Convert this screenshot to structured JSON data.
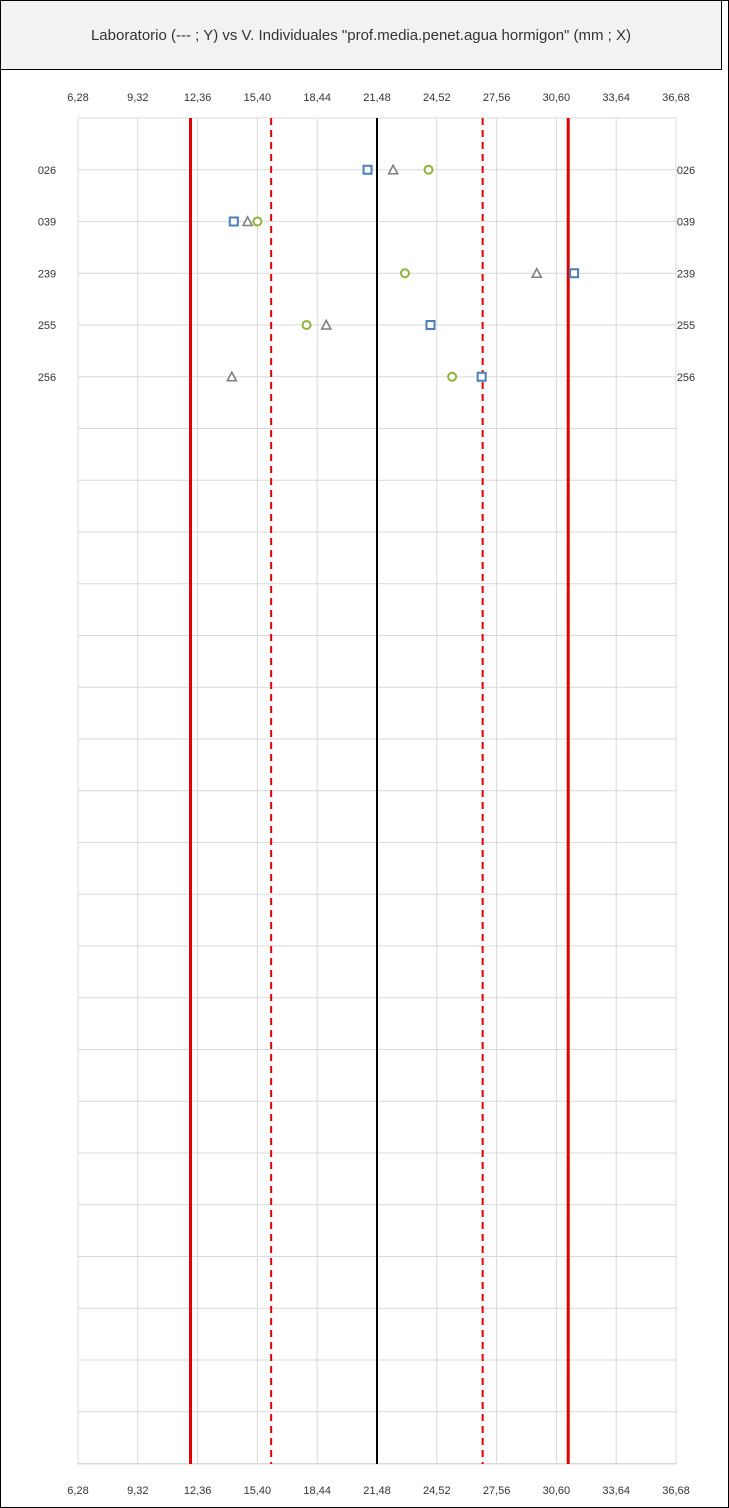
{
  "chart_data": {
    "type": "scatter",
    "title": "Laboratorio (--- ; Y) vs V. Individuales \"prof.media.penet.agua hormigon\" (mm ; X)",
    "x_ticks": [
      "6,28",
      "9,32",
      "12,36",
      "15,40",
      "18,44",
      "21,48",
      "24,52",
      "27,56",
      "30,60",
      "33,64",
      "36,68"
    ],
    "xlim": [
      6.28,
      36.68
    ],
    "categories": [
      "026",
      "039",
      "239",
      "255",
      "256"
    ],
    "row_count": 26,
    "series": [
      {
        "marker": "square",
        "color": "#4a7ebb",
        "values": [
          21.0,
          14.2,
          31.5,
          24.2,
          26.8
        ]
      },
      {
        "marker": "triangle",
        "color": "#7f7f7f",
        "values": [
          22.3,
          14.9,
          29.6,
          18.9,
          14.1
        ]
      },
      {
        "marker": "circle",
        "color": "#8db33a",
        "values": [
          24.1,
          15.4,
          22.9,
          17.9,
          25.3
        ]
      }
    ],
    "reference_lines": [
      {
        "value": 21.48,
        "color": "#000000",
        "style": "solid"
      },
      {
        "value": 16.1,
        "color": "#e00000",
        "style": "dashed"
      },
      {
        "value": 26.85,
        "color": "#e00000",
        "style": "dashed"
      },
      {
        "value": 12.0,
        "color": "#e00000",
        "style": "solid"
      },
      {
        "value": 31.2,
        "color": "#e00000",
        "style": "solid"
      }
    ],
    "grid": true
  }
}
